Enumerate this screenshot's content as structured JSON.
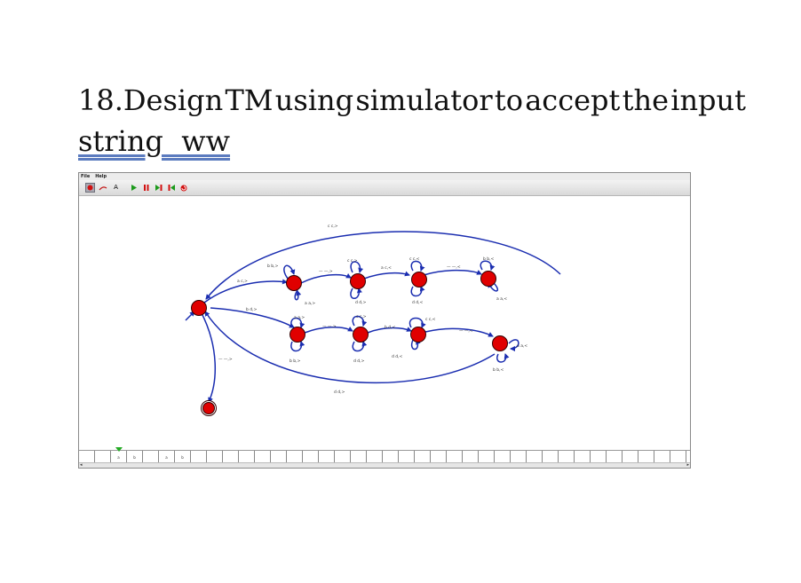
{
  "heading": {
    "line1_words": [
      "18.Design",
      "TM",
      "using",
      "simulator",
      "to",
      "accept",
      "the",
      "input"
    ],
    "line2": "string  ww"
  },
  "simulator": {
    "menu": [
      "File",
      "Help"
    ],
    "toolbar_icons": [
      "state-tool-icon",
      "transition-tool-icon",
      "label-tool-icon",
      "run-icon",
      "pause-icon",
      "step-icon",
      "step-back-icon",
      "reset-icon"
    ],
    "label_tool_text": "A",
    "state_color": "#e00000",
    "arrow_color": "#1a2db0",
    "edge_labels": {
      "top_arc": "c c,>",
      "e1": "a c,>",
      "e2": "— —,>",
      "e3": "a c,<",
      "e4": "— —,<",
      "l1_top": "b b,>",
      "l1_bot": "a a,>",
      "l2_top": "c c,>",
      "l2_bot": "d d,>",
      "l3_top": "c c,<",
      "l3_bot": "d d,<",
      "l4_top": "b b,<",
      "l4_bot": "a a,<",
      "e5": "b d,>",
      "e6": "— —,>",
      "e7": "b d,<",
      "e8": "— —,<",
      "m1_top": "a a,>",
      "m1_bot": "b b,>",
      "m2_top": "c c,>",
      "m2_bot": "d d,>",
      "m3_top": "c c,<",
      "m3_bot": "d d,<",
      "m4_right": "a a,<",
      "m4_bot": "b b,<",
      "bottom_arc": "d d,>",
      "to_final": "— —,>"
    },
    "tape": [
      "",
      "",
      "a",
      "b",
      "",
      "a",
      "b",
      "",
      "",
      "",
      "",
      "",
      "",
      "",
      "",
      "",
      "",
      "",
      "",
      "",
      "",
      "",
      "",
      "",
      "",
      "",
      "",
      "",
      "",
      "",
      "",
      "",
      "",
      "",
      "",
      "",
      "",
      ""
    ],
    "head_index": 2,
    "scroll_left": "◂",
    "scroll_right": "▸"
  }
}
